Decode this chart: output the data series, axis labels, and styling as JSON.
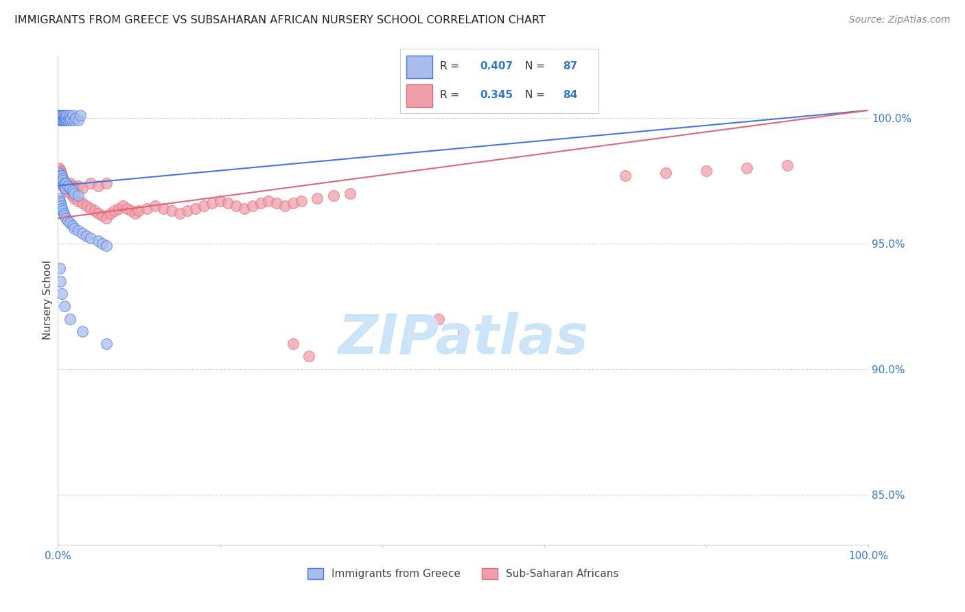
{
  "title": "IMMIGRANTS FROM GREECE VS SUBSAHARAN AFRICAN NURSERY SCHOOL CORRELATION CHART",
  "source": "Source: ZipAtlas.com",
  "ylabel": "Nursery School",
  "y_tick_labels": [
    "100.0%",
    "95.0%",
    "90.0%",
    "85.0%"
  ],
  "y_tick_values": [
    1.0,
    0.95,
    0.9,
    0.85
  ],
  "title_color": "#222222",
  "source_color": "#888888",
  "axis_label_color": "#444444",
  "tick_label_color": "#3377cc",
  "grid_color": "#cccccc",
  "blue_color": "#4477dd",
  "blue_fill": "#aabbee",
  "pink_color": "#dd6677",
  "pink_fill": "#f0a0aa",
  "background_color": "#ffffff",
  "xlim": [
    0.0,
    1.0
  ],
  "ylim": [
    0.83,
    1.025
  ],
  "blue_trend": [
    0.0,
    0.973,
    1.0,
    1.003
  ],
  "pink_trend": [
    0.0,
    0.96,
    1.0,
    1.003
  ],
  "blue_scatter_x": [
    0.001,
    0.002,
    0.002,
    0.002,
    0.003,
    0.003,
    0.003,
    0.003,
    0.003,
    0.004,
    0.004,
    0.004,
    0.004,
    0.005,
    0.005,
    0.005,
    0.005,
    0.006,
    0.006,
    0.006,
    0.007,
    0.007,
    0.007,
    0.008,
    0.008,
    0.009,
    0.009,
    0.01,
    0.01,
    0.011,
    0.012,
    0.013,
    0.014,
    0.015,
    0.016,
    0.018,
    0.02,
    0.022,
    0.025,
    0.028,
    0.001,
    0.002,
    0.002,
    0.003,
    0.003,
    0.004,
    0.004,
    0.005,
    0.005,
    0.006,
    0.006,
    0.007,
    0.008,
    0.009,
    0.01,
    0.012,
    0.015,
    0.018,
    0.02,
    0.025,
    0.001,
    0.002,
    0.003,
    0.004,
    0.005,
    0.006,
    0.007,
    0.008,
    0.01,
    0.012,
    0.015,
    0.018,
    0.02,
    0.025,
    0.03,
    0.035,
    0.04,
    0.05,
    0.055,
    0.06,
    0.002,
    0.003,
    0.005,
    0.008,
    0.015,
    0.03,
    0.06
  ],
  "blue_scatter_y": [
    1.001,
    1.0,
    0.999,
    1.001,
    1.0,
    1.001,
    0.999,
    1.0,
    1.001,
    1.0,
    1.001,
    0.999,
    1.0,
    1.001,
    1.0,
    0.999,
    1.001,
    1.0,
    0.999,
    1.001,
    1.0,
    0.999,
    1.001,
    1.0,
    0.999,
    1.0,
    1.001,
    0.999,
    1.0,
    1.001,
    0.999,
    1.0,
    1.001,
    0.999,
    1.0,
    1.001,
    0.999,
    1.0,
    0.999,
    1.001,
    0.978,
    0.976,
    0.975,
    0.977,
    0.974,
    0.976,
    0.975,
    0.977,
    0.974,
    0.976,
    0.975,
    0.974,
    0.973,
    0.972,
    0.974,
    0.973,
    0.972,
    0.971,
    0.97,
    0.969,
    0.968,
    0.967,
    0.966,
    0.965,
    0.964,
    0.963,
    0.962,
    0.961,
    0.96,
    0.959,
    0.958,
    0.957,
    0.956,
    0.955,
    0.954,
    0.953,
    0.952,
    0.951,
    0.95,
    0.949,
    0.94,
    0.935,
    0.93,
    0.925,
    0.92,
    0.915,
    0.91
  ],
  "pink_scatter_x": [
    0.001,
    0.002,
    0.002,
    0.003,
    0.003,
    0.003,
    0.004,
    0.004,
    0.005,
    0.005,
    0.006,
    0.006,
    0.007,
    0.008,
    0.009,
    0.01,
    0.012,
    0.015,
    0.018,
    0.02,
    0.025,
    0.03,
    0.035,
    0.04,
    0.045,
    0.05,
    0.055,
    0.06,
    0.065,
    0.07,
    0.075,
    0.08,
    0.085,
    0.09,
    0.095,
    0.1,
    0.11,
    0.12,
    0.13,
    0.14,
    0.15,
    0.16,
    0.17,
    0.18,
    0.19,
    0.2,
    0.21,
    0.22,
    0.23,
    0.24,
    0.25,
    0.26,
    0.27,
    0.28,
    0.29,
    0.3,
    0.32,
    0.34,
    0.36,
    0.003,
    0.004,
    0.005,
    0.006,
    0.007,
    0.008,
    0.01,
    0.012,
    0.015,
    0.018,
    0.02,
    0.025,
    0.03,
    0.04,
    0.05,
    0.06,
    0.7,
    0.75,
    0.8,
    0.85,
    0.9,
    0.29,
    0.31,
    0.47,
    0.5
  ],
  "pink_scatter_y": [
    0.98,
    0.978,
    0.977,
    0.979,
    0.976,
    0.978,
    0.977,
    0.975,
    0.976,
    0.974,
    0.975,
    0.973,
    0.974,
    0.972,
    0.973,
    0.971,
    0.972,
    0.97,
    0.969,
    0.968,
    0.967,
    0.966,
    0.965,
    0.964,
    0.963,
    0.962,
    0.961,
    0.96,
    0.962,
    0.963,
    0.964,
    0.965,
    0.964,
    0.963,
    0.962,
    0.963,
    0.964,
    0.965,
    0.964,
    0.963,
    0.962,
    0.963,
    0.964,
    0.965,
    0.966,
    0.967,
    0.966,
    0.965,
    0.964,
    0.965,
    0.966,
    0.967,
    0.966,
    0.965,
    0.966,
    0.967,
    0.968,
    0.969,
    0.97,
    0.979,
    0.978,
    0.977,
    0.976,
    0.975,
    0.974,
    0.972,
    0.973,
    0.974,
    0.973,
    0.972,
    0.973,
    0.972,
    0.974,
    0.973,
    0.974,
    0.977,
    0.978,
    0.979,
    0.98,
    0.981,
    0.91,
    0.905,
    0.92,
    0.915
  ]
}
